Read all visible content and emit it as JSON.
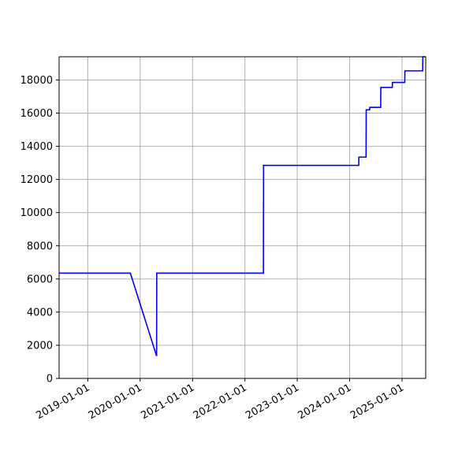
{
  "chart_data": {
    "type": "line",
    "title": "",
    "xlabel": "",
    "ylabel": "",
    "x_axis_type": "date",
    "xlim": [
      "2018-06-15",
      "2025-06-15"
    ],
    "ylim": [
      0,
      19400
    ],
    "grid": true,
    "legend": "none",
    "x_ticks": [
      "2019-01-01",
      "2020-01-01",
      "2021-01-01",
      "2022-01-01",
      "2023-01-01",
      "2024-01-01",
      "2025-01-01"
    ],
    "y_ticks": [
      0,
      2000,
      4000,
      6000,
      8000,
      10000,
      12000,
      14000,
      16000,
      18000
    ],
    "series": [
      {
        "color": "#0000ff",
        "x": [
          "2018-06-15",
          "2019-10-25",
          "2020-04-25",
          "2020-04-26",
          "2022-05-10",
          "2022-05-11",
          "2024-03-05",
          "2024-03-06",
          "2024-04-25",
          "2024-04-26",
          "2024-05-20",
          "2024-05-21",
          "2024-08-05",
          "2024-08-06",
          "2024-10-25",
          "2024-10-26",
          "2025-01-20",
          "2025-01-21",
          "2025-05-25",
          "2025-05-26",
          "2025-06-15"
        ],
        "y": [
          6350,
          6350,
          1350,
          6350,
          6350,
          12850,
          12850,
          13350,
          13350,
          16200,
          16200,
          16350,
          16350,
          17550,
          17550,
          17850,
          17850,
          18550,
          18550,
          19400,
          19400
        ]
      }
    ]
  }
}
